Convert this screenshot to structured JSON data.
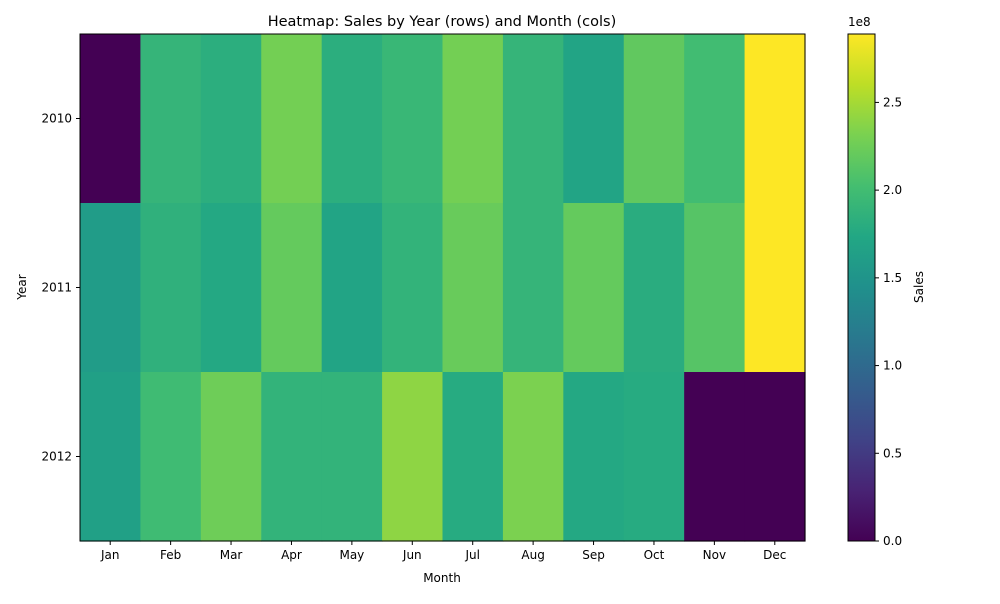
{
  "chart_data": {
    "type": "heatmap",
    "title": "Heatmap: Sales by Year (rows) and Month (cols)",
    "xlabel": "Month",
    "ylabel": "Year",
    "x_categories": [
      "Jan",
      "Feb",
      "Mar",
      "Apr",
      "May",
      "Jun",
      "Jul",
      "Aug",
      "Sep",
      "Oct",
      "Nov",
      "Dec"
    ],
    "y_categories": [
      "2010",
      "2011",
      "2012"
    ],
    "values": [
      [
        0,
        190000000,
        182000000,
        228000000,
        182000000,
        193000000,
        228000000,
        190000000,
        170000000,
        218000000,
        200000000,
        289000000
      ],
      [
        160000000,
        185000000,
        175000000,
        220000000,
        170000000,
        188000000,
        222000000,
        190000000,
        220000000,
        180000000,
        212000000,
        289000000
      ],
      [
        165000000,
        198000000,
        225000000,
        188000000,
        188000000,
        240000000,
        178000000,
        232000000,
        175000000,
        178000000,
        0,
        0
      ]
    ],
    "colormap": "viridis",
    "vmin": 0,
    "vmax": 289000000,
    "colorbar": {
      "label": "Sales",
      "ticks": [
        0,
        0.5,
        1.0,
        1.5,
        2.0,
        2.5
      ],
      "tick_labels": [
        "0.0",
        "0.5",
        "1.0",
        "1.5",
        "2.0",
        "2.5"
      ],
      "multiplier": "1e8"
    }
  }
}
